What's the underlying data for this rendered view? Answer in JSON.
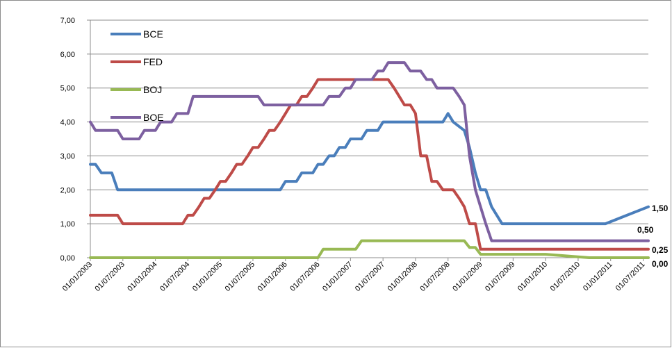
{
  "chart_data": {
    "type": "line",
    "x_tick_labels": [
      "01/01/2003",
      "01/07/2003",
      "01/01/2004",
      "01/07/2004",
      "01/01/2005",
      "01/07/2005",
      "01/01/2006",
      "01/07/2006",
      "01/01/2007",
      "01/07/2007",
      "01/01/2008",
      "01/07/2008",
      "01/01/2009",
      "01/07/2009",
      "01/01/2010",
      "01/07/2010",
      "01/01/2011",
      "01/07/2011"
    ],
    "y_tick_labels": [
      "0,00",
      "1,00",
      "2,00",
      "3,00",
      "4,00",
      "5,00",
      "6,00",
      "7,00"
    ],
    "ylim": [
      0,
      7
    ],
    "x_range_years": [
      2003.0,
      2011.58
    ],
    "grid": true,
    "legend_position": "top-left",
    "series": [
      {
        "name": "BCE",
        "color": "#4a7ebb",
        "points": [
          [
            2003.0,
            2.75
          ],
          [
            2003.08,
            2.75
          ],
          [
            2003.17,
            2.5
          ],
          [
            2003.33,
            2.5
          ],
          [
            2003.42,
            2.0
          ],
          [
            2005.92,
            2.0
          ],
          [
            2006.0,
            2.25
          ],
          [
            2006.17,
            2.25
          ],
          [
            2006.25,
            2.5
          ],
          [
            2006.42,
            2.5
          ],
          [
            2006.5,
            2.75
          ],
          [
            2006.58,
            2.75
          ],
          [
            2006.67,
            3.0
          ],
          [
            2006.75,
            3.0
          ],
          [
            2006.83,
            3.25
          ],
          [
            2006.92,
            3.25
          ],
          [
            2007.0,
            3.5
          ],
          [
            2007.17,
            3.5
          ],
          [
            2007.25,
            3.75
          ],
          [
            2007.42,
            3.75
          ],
          [
            2007.5,
            4.0
          ],
          [
            2008.42,
            4.0
          ],
          [
            2008.5,
            4.25
          ],
          [
            2008.58,
            4.0
          ],
          [
            2008.75,
            3.75
          ],
          [
            2008.83,
            3.25
          ],
          [
            2008.92,
            2.5
          ],
          [
            2009.0,
            2.0
          ],
          [
            2009.08,
            2.0
          ],
          [
            2009.17,
            1.5
          ],
          [
            2009.33,
            1.0
          ],
          [
            2010.92,
            1.0
          ],
          [
            2011.25,
            1.25
          ],
          [
            2011.58,
            1.5
          ]
        ]
      },
      {
        "name": "FED",
        "color": "#be4b48",
        "points": [
          [
            2003.0,
            1.25
          ],
          [
            2003.42,
            1.25
          ],
          [
            2003.5,
            1.0
          ],
          [
            2004.42,
            1.0
          ],
          [
            2004.5,
            1.25
          ],
          [
            2004.58,
            1.25
          ],
          [
            2004.67,
            1.5
          ],
          [
            2004.75,
            1.75
          ],
          [
            2004.83,
            1.75
          ],
          [
            2004.92,
            2.0
          ],
          [
            2005.0,
            2.25
          ],
          [
            2005.08,
            2.25
          ],
          [
            2005.17,
            2.5
          ],
          [
            2005.25,
            2.75
          ],
          [
            2005.33,
            2.75
          ],
          [
            2005.42,
            3.0
          ],
          [
            2005.5,
            3.25
          ],
          [
            2005.58,
            3.25
          ],
          [
            2005.67,
            3.5
          ],
          [
            2005.75,
            3.75
          ],
          [
            2005.83,
            3.75
          ],
          [
            2005.92,
            4.0
          ],
          [
            2006.0,
            4.25
          ],
          [
            2006.08,
            4.5
          ],
          [
            2006.17,
            4.5
          ],
          [
            2006.25,
            4.75
          ],
          [
            2006.33,
            4.75
          ],
          [
            2006.42,
            5.0
          ],
          [
            2006.5,
            5.25
          ],
          [
            2007.58,
            5.25
          ],
          [
            2007.67,
            5.0
          ],
          [
            2007.75,
            4.75
          ],
          [
            2007.83,
            4.5
          ],
          [
            2007.92,
            4.5
          ],
          [
            2008.0,
            4.25
          ],
          [
            2008.08,
            3.0
          ],
          [
            2008.17,
            3.0
          ],
          [
            2008.25,
            2.25
          ],
          [
            2008.33,
            2.25
          ],
          [
            2008.42,
            2.0
          ],
          [
            2008.58,
            2.0
          ],
          [
            2008.67,
            1.75
          ],
          [
            2008.75,
            1.5
          ],
          [
            2008.83,
            1.0
          ],
          [
            2008.92,
            1.0
          ],
          [
            2009.0,
            0.25
          ],
          [
            2011.58,
            0.25
          ]
        ]
      },
      {
        "name": "BOJ",
        "color": "#98b954",
        "points": [
          [
            2003.0,
            0.0
          ],
          [
            2006.5,
            0.0
          ],
          [
            2006.58,
            0.25
          ],
          [
            2007.08,
            0.25
          ],
          [
            2007.17,
            0.5
          ],
          [
            2008.75,
            0.5
          ],
          [
            2008.83,
            0.3
          ],
          [
            2008.92,
            0.3
          ],
          [
            2009.0,
            0.1
          ],
          [
            2010.0,
            0.1
          ],
          [
            2010.67,
            0.0
          ],
          [
            2011.58,
            0.0
          ]
        ]
      },
      {
        "name": "BOE",
        "color": "#7d60a0",
        "points": [
          [
            2003.0,
            4.0
          ],
          [
            2003.08,
            3.75
          ],
          [
            2003.42,
            3.75
          ],
          [
            2003.5,
            3.5
          ],
          [
            2003.75,
            3.5
          ],
          [
            2003.83,
            3.75
          ],
          [
            2004.0,
            3.75
          ],
          [
            2004.08,
            4.0
          ],
          [
            2004.25,
            4.0
          ],
          [
            2004.33,
            4.25
          ],
          [
            2004.5,
            4.25
          ],
          [
            2004.58,
            4.75
          ],
          [
            2005.58,
            4.75
          ],
          [
            2005.67,
            4.5
          ],
          [
            2006.58,
            4.5
          ],
          [
            2006.67,
            4.75
          ],
          [
            2006.83,
            4.75
          ],
          [
            2006.92,
            5.0
          ],
          [
            2007.0,
            5.0
          ],
          [
            2007.08,
            5.25
          ],
          [
            2007.33,
            5.25
          ],
          [
            2007.42,
            5.5
          ],
          [
            2007.5,
            5.5
          ],
          [
            2007.58,
            5.75
          ],
          [
            2007.83,
            5.75
          ],
          [
            2007.92,
            5.5
          ],
          [
            2008.08,
            5.5
          ],
          [
            2008.17,
            5.25
          ],
          [
            2008.25,
            5.25
          ],
          [
            2008.33,
            5.0
          ],
          [
            2008.58,
            5.0
          ],
          [
            2008.67,
            4.75
          ],
          [
            2008.75,
            4.5
          ],
          [
            2008.83,
            3.0
          ],
          [
            2008.92,
            2.0
          ],
          [
            2009.0,
            1.5
          ],
          [
            2009.08,
            1.0
          ],
          [
            2009.17,
            0.5
          ],
          [
            2011.58,
            0.5
          ]
        ]
      }
    ],
    "end_labels": [
      "1,50",
      "0,50",
      "0,25",
      "0,00"
    ]
  }
}
